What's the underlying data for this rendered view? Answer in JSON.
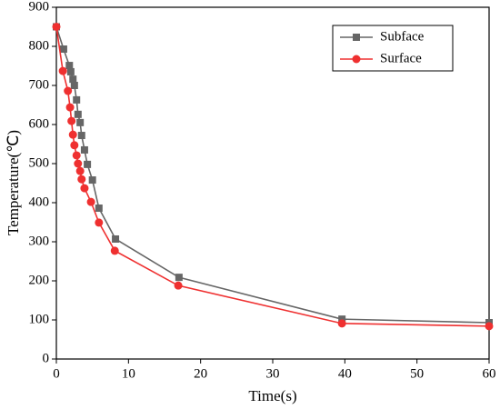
{
  "chart_data": {
    "type": "line",
    "x_label": "Time(s)",
    "y_label": "Temperature(℃)",
    "series": [
      {
        "name": "Subface",
        "color": "#666666",
        "marker": "square",
        "x": [
          0,
          1.0,
          1.8,
          2.0,
          2.3,
          2.5,
          2.8,
          3.0,
          3.3,
          3.5,
          3.9,
          4.3,
          5.0,
          5.9,
          8.2,
          17,
          39.6,
          60
        ],
        "values": [
          850,
          793,
          751,
          735,
          716,
          700,
          663,
          626,
          605,
          572,
          535,
          498,
          458,
          386,
          307,
          209,
          102,
          93
        ]
      },
      {
        "name": "Surface",
        "color": "#ef3030",
        "marker": "circle",
        "x": [
          0,
          0.9,
          1.6,
          1.9,
          2.1,
          2.3,
          2.5,
          2.8,
          3.0,
          3.3,
          3.5,
          3.9,
          4.8,
          5.9,
          8.1,
          16.9,
          39.6,
          60
        ],
        "values": [
          850,
          737,
          686,
          644,
          609,
          574,
          547,
          521,
          500,
          481,
          460,
          437,
          402,
          349,
          277,
          188,
          91,
          84
        ]
      }
    ],
    "xlim": [
      0,
      60
    ],
    "xticks": [
      0,
      10,
      20,
      30,
      40,
      50,
      60
    ],
    "ylim": [
      0,
      900
    ],
    "yticks": [
      0,
      100,
      200,
      300,
      400,
      500,
      600,
      700,
      800,
      900
    ],
    "legend": "upper right"
  }
}
